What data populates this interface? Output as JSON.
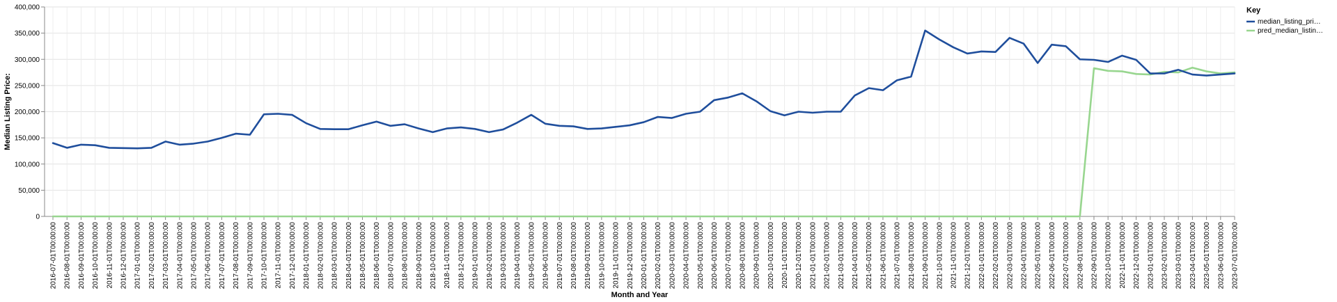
{
  "chart_data": {
    "type": "line",
    "xlabel": "Month and Year",
    "ylabel": "Median Listing Price:",
    "ylim": [
      0,
      400000
    ],
    "y_ticks": [
      "0",
      "50,000",
      "100,000",
      "150,000",
      "200,000",
      "250,000",
      "300,000",
      "350,000",
      "400,000"
    ],
    "grid": true,
    "legend": {
      "title": "Key",
      "placement": "top-right"
    },
    "x": [
      "2016-07-01T00:00:00",
      "2016-08-01T00:00:00",
      "2016-09-01T00:00:00",
      "2016-10-01T00:00:00",
      "2016-11-01T00:00:00",
      "2016-12-01T00:00:00",
      "2017-01-01T00:00:00",
      "2017-02-01T00:00:00",
      "2017-03-01T00:00:00",
      "2017-04-01T00:00:00",
      "2017-05-01T00:00:00",
      "2017-06-01T00:00:00",
      "2017-07-01T00:00:00",
      "2017-08-01T00:00:00",
      "2017-09-01T00:00:00",
      "2017-10-01T00:00:00",
      "2017-11-01T00:00:00",
      "2017-12-01T00:00:00",
      "2018-01-01T00:00:00",
      "2018-02-01T00:00:00",
      "2018-03-01T00:00:00",
      "2018-04-01T00:00:00",
      "2018-05-01T00:00:00",
      "2018-06-01T00:00:00",
      "2018-07-01T00:00:00",
      "2018-08-01T00:00:00",
      "2018-09-01T00:00:00",
      "2018-10-01T00:00:00",
      "2018-11-01T00:00:00",
      "2018-12-01T00:00:00",
      "2019-01-01T00:00:00",
      "2019-02-01T00:00:00",
      "2019-03-01T00:00:00",
      "2019-04-01T00:00:00",
      "2019-05-01T00:00:00",
      "2019-06-01T00:00:00",
      "2019-07-01T00:00:00",
      "2019-08-01T00:00:00",
      "2019-09-01T00:00:00",
      "2019-10-01T00:00:00",
      "2019-11-01T00:00:00",
      "2019-12-01T00:00:00",
      "2020-01-01T00:00:00",
      "2020-02-01T00:00:00",
      "2020-03-01T00:00:00",
      "2020-04-01T00:00:00",
      "2020-05-01T00:00:00",
      "2020-06-01T00:00:00",
      "2020-07-01T00:00:00",
      "2020-08-01T00:00:00",
      "2020-09-01T00:00:00",
      "2020-10-01T00:00:00",
      "2020-11-01T00:00:00",
      "2020-12-01T00:00:00",
      "2021-01-01T00:00:00",
      "2021-02-01T00:00:00",
      "2021-03-01T00:00:00",
      "2021-04-01T00:00:00",
      "2021-05-01T00:00:00",
      "2021-06-01T00:00:00",
      "2021-07-01T00:00:00",
      "2021-08-01T00:00:00",
      "2021-09-01T00:00:00",
      "2021-10-01T00:00:00",
      "2021-11-01T00:00:00",
      "2021-12-01T00:00:00",
      "2022-01-01T00:00:00",
      "2022-02-01T00:00:00",
      "2022-03-01T00:00:00",
      "2022-04-01T00:00:00",
      "2022-05-01T00:00:00",
      "2022-06-01T00:00:00",
      "2022-07-01T00:00:00",
      "2022-08-01T00:00:00",
      "2022-09-01T00:00:00",
      "2022-10-01T00:00:00",
      "2022-11-01T00:00:00",
      "2022-12-01T00:00:00",
      "2023-01-01T00:00:00",
      "2023-02-01T00:00:00",
      "2023-03-01T00:00:00",
      "2023-04-01T00:00:00",
      "2023-05-01T00:00:00",
      "2023-06-01T00:00:00",
      "2023-07-01T00:00:00"
    ],
    "series": [
      {
        "name": "median_listing_pri…",
        "color": "#1f4e9c",
        "values": [
          140000,
          131000,
          137000,
          136000,
          131000,
          130500,
          130000,
          131000,
          143000,
          137000,
          139000,
          143000,
          150000,
          158000,
          156000,
          195000,
          196000,
          194000,
          178000,
          167000,
          166500,
          166500,
          174000,
          181000,
          173000,
          176000,
          168000,
          161000,
          168000,
          170000,
          167000,
          161000,
          166000,
          179000,
          194000,
          177000,
          173000,
          172000,
          167000,
          168000,
          171000,
          174000,
          180000,
          190000,
          188000,
          196000,
          200000,
          222000,
          227000,
          235000,
          220000,
          201000,
          193000,
          200000,
          198000,
          200000,
          200000,
          231000,
          245000,
          241000,
          260000,
          267000,
          355000,
          338000,
          323000,
          311000,
          315000,
          314000,
          341000,
          330000,
          293000,
          328000,
          325000,
          300000,
          299000,
          295000,
          307000,
          299000,
          273000,
          273000,
          280000,
          271000,
          269000,
          271000,
          273000
        ]
      },
      {
        "name": "pred_median_listin…",
        "color": "#98d68f",
        "values": [
          0,
          0,
          0,
          0,
          0,
          0,
          0,
          0,
          0,
          0,
          0,
          0,
          0,
          0,
          0,
          0,
          0,
          0,
          0,
          0,
          0,
          0,
          0,
          0,
          0,
          0,
          0,
          0,
          0,
          0,
          0,
          0,
          0,
          0,
          0,
          0,
          0,
          0,
          0,
          0,
          0,
          0,
          0,
          0,
          0,
          0,
          0,
          0,
          0,
          0,
          0,
          0,
          0,
          0,
          0,
          0,
          0,
          0,
          0,
          0,
          0,
          0,
          0,
          0,
          0,
          0,
          0,
          0,
          0,
          0,
          0,
          0,
          0,
          0,
          283000,
          278000,
          277000,
          272000,
          271000,
          276000,
          275000,
          284000,
          277000,
          273000,
          275000
        ]
      }
    ]
  }
}
